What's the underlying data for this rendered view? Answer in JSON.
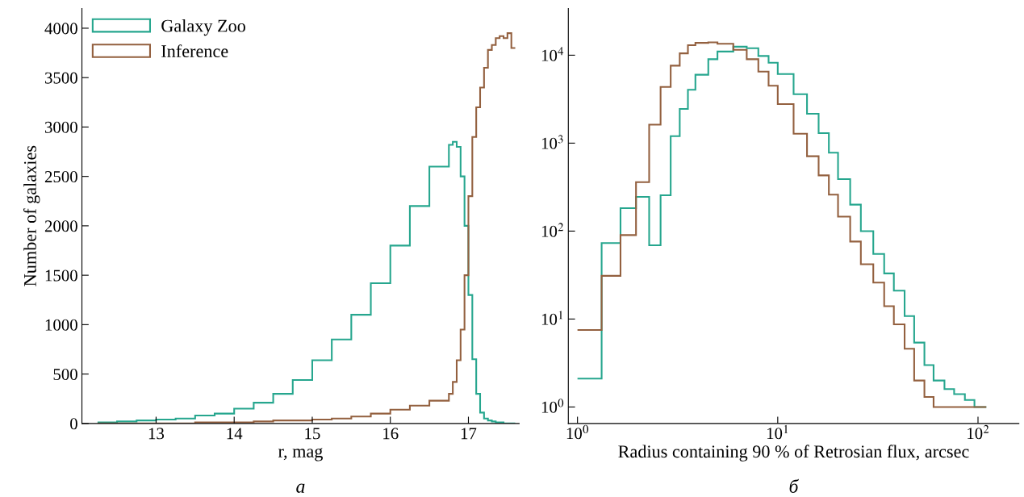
{
  "chart_data": [
    {
      "type": "histogram",
      "xlabel": "r, mag",
      "ylabel": "Number of galaxies",
      "annotations": [
        "а"
      ],
      "legend": "top left",
      "grid": false,
      "xlim": [
        12.05,
        17.65
      ],
      "ylim": [
        0,
        4200
      ],
      "xticks": [
        13,
        14,
        15,
        16,
        17
      ],
      "yticks": [
        0,
        500,
        1000,
        1500,
        2000,
        2500,
        3000,
        3500,
        4000
      ],
      "bins": [
        12.25,
        12.5,
        12.75,
        13.0,
        13.25,
        13.5,
        13.75,
        14.0,
        14.25,
        14.5,
        14.75,
        15.0,
        15.25,
        15.5,
        15.75,
        16.0,
        16.25,
        16.5,
        16.75,
        16.8,
        16.85,
        16.9,
        16.95,
        17.0,
        17.05,
        17.1,
        17.15,
        17.2,
        17.25,
        17.3,
        17.35,
        17.4,
        17.45,
        17.5,
        17.55,
        17.6
      ],
      "series": [
        {
          "name": "Galaxy Zoo",
          "color": "#26a68e",
          "values": [
            10,
            20,
            30,
            40,
            50,
            80,
            100,
            150,
            210,
            300,
            440,
            640,
            850,
            1100,
            1420,
            1800,
            2200,
            2600,
            2820,
            2850,
            2800,
            2500,
            2000,
            1300,
            650,
            300,
            110,
            50,
            30,
            20,
            10,
            10,
            0,
            0,
            0
          ]
        },
        {
          "name": "Inference",
          "color": "#93603f",
          "values": [
            0,
            0,
            0,
            0,
            0,
            10,
            10,
            10,
            20,
            30,
            30,
            40,
            50,
            70,
            100,
            140,
            180,
            230,
            300,
            420,
            640,
            950,
            1500,
            2300,
            2900,
            3200,
            3400,
            3600,
            3780,
            3830,
            3900,
            3920,
            3900,
            3950,
            3800
          ]
        }
      ]
    },
    {
      "type": "histogram",
      "xlabel": "Radius containing 90 % of Retrosian flux, arcsec",
      "annotations": [
        "б"
      ],
      "log": "xy",
      "grid": false,
      "xlim": [
        0.9,
        160
      ],
      "ylim": [
        0.65,
        34000
      ],
      "xticks": [
        {
          "value": 1,
          "label": "10$^{0}$"
        },
        {
          "value": 10,
          "label": "10$^{1}$"
        },
        {
          "value": 100,
          "label": "10$^{2}$"
        }
      ],
      "yticks": [
        {
          "value": 1,
          "label": "10$^{0}$"
        },
        {
          "value": 10,
          "label": "10$^{1}$"
        },
        {
          "value": 100,
          "label": "10$^{2}$"
        },
        {
          "value": 1000,
          "label": "10$^{3}$"
        },
        {
          "value": 10000,
          "label": "10$^{4}$"
        }
      ],
      "bins": [
        1,
        1.32,
        1.64,
        1.96,
        2.28,
        2.6,
        2.92,
        3.24,
        3.56,
        3.88,
        4.5,
        5,
        6,
        7,
        8,
        9,
        10,
        12,
        14,
        16,
        18,
        20,
        23,
        26,
        30,
        34,
        38,
        43,
        48,
        54,
        60,
        68,
        76,
        86,
        96,
        110
      ],
      "series": [
        {
          "color": "#26a68e",
          "values": [
            2.1,
            73,
            182,
            245,
            69,
            256,
            1200,
            2450,
            4040,
            6000,
            9000,
            11000,
            12500,
            12000,
            9800,
            8200,
            6100,
            3600,
            2160,
            1300,
            780,
            390,
            200,
            100,
            55,
            33,
            21,
            10.8,
            5.4,
            3,
            2,
            1.6,
            1.4,
            1.2,
            1
          ]
        },
        {
          "color": "#93603f",
          "values": [
            7.5,
            31,
            90,
            360,
            1620,
            4360,
            7600,
            10500,
            13000,
            13800,
            14000,
            13500,
            11500,
            9000,
            6500,
            4500,
            2780,
            1280,
            710,
            430,
            260,
            146,
            76,
            42,
            26,
            14,
            8.7,
            4.6,
            2,
            1.3,
            1,
            1,
            1,
            1,
            1
          ]
        }
      ]
    }
  ]
}
